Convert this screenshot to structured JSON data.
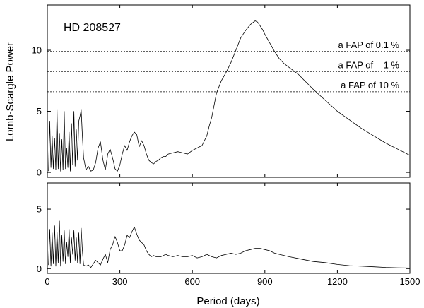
{
  "chart_data": [
    {
      "type": "line",
      "panel": "top",
      "annotation": "HD 208527",
      "xlabel": "",
      "ylabel": "Lomb-Scargle Power",
      "xlim": [
        0,
        1500
      ],
      "ylim": [
        -0.4,
        13.7
      ],
      "xticks": [
        0,
        300,
        600,
        900,
        1200,
        1500
      ],
      "yticks": [
        0,
        5,
        10
      ],
      "ytick_labels": [
        "0",
        "5",
        "10"
      ],
      "fap_levels": [
        {
          "label": "a FAP of 0.1 %",
          "value": 9.9
        },
        {
          "label": "a FAP of    1 %",
          "value": 8.25
        },
        {
          "label": "a FAP of 10 %",
          "value": 6.6
        }
      ],
      "series": [
        {
          "x": [
            5,
            10,
            15,
            20,
            25,
            30,
            35,
            40,
            45,
            50,
            55,
            60,
            65,
            70,
            75,
            80,
            85,
            90,
            95,
            100,
            105,
            110,
            115,
            120,
            125,
            130,
            135,
            140,
            145,
            150,
            160,
            170,
            180,
            190,
            200,
            210,
            220,
            230,
            240,
            250,
            260,
            270,
            280,
            290,
            300,
            310,
            320,
            330,
            340,
            350,
            360,
            370,
            380,
            390,
            400,
            410,
            420,
            430,
            440,
            450,
            460,
            470,
            480,
            490,
            500,
            520,
            540,
            560,
            580,
            600,
            620,
            640,
            660,
            670,
            680,
            690,
            700,
            720,
            740,
            760,
            780,
            800,
            820,
            840,
            860,
            870,
            880,
            890,
            900,
            920,
            940,
            960,
            980,
            1000,
            1020,
            1040,
            1060,
            1080,
            1100,
            1150,
            1200,
            1250,
            1300,
            1350,
            1400,
            1450,
            1500
          ],
          "y": [
            0.1,
            4.2,
            0.4,
            3.0,
            0.3,
            2.8,
            0.2,
            5.1,
            0.3,
            3.2,
            0.1,
            2.7,
            0.2,
            5.0,
            0.3,
            2.0,
            0.4,
            3.3,
            0.1,
            4.0,
            0.6,
            5.0,
            0.5,
            3.5,
            1.0,
            4.2,
            4.6,
            5.1,
            3.0,
            1.2,
            0.2,
            0.5,
            0.1,
            0.2,
            0.8,
            2.0,
            2.5,
            1.0,
            0.2,
            1.5,
            1.9,
            1.2,
            0.3,
            0.1,
            0.6,
            1.5,
            2.2,
            1.8,
            2.5,
            3.0,
            3.3,
            3.1,
            2.1,
            2.6,
            2.2,
            1.5,
            1.0,
            0.8,
            0.7,
            0.9,
            1.0,
            1.2,
            1.3,
            1.3,
            1.5,
            1.6,
            1.7,
            1.6,
            1.5,
            1.8,
            2.0,
            2.2,
            3.0,
            3.8,
            4.5,
            5.5,
            6.5,
            7.5,
            8.2,
            9.0,
            10.0,
            11.0,
            11.6,
            12.1,
            12.4,
            12.3,
            12.0,
            11.7,
            11.3,
            10.6,
            9.9,
            9.3,
            8.9,
            8.6,
            8.3,
            8.0,
            7.6,
            7.2,
            6.8,
            5.9,
            5.0,
            4.3,
            3.6,
            3.0,
            2.4,
            1.9,
            1.4
          ]
        }
      ]
    },
    {
      "type": "line",
      "panel": "bottom",
      "xlabel": "Period (days)",
      "ylabel": "",
      "xlim": [
        0,
        1500
      ],
      "ylim": [
        -0.4,
        7.2
      ],
      "xticks": [
        0,
        300,
        600,
        900,
        1200,
        1500
      ],
      "xtick_labels": [
        "0",
        "300",
        "600",
        "900",
        "1200",
        "1500"
      ],
      "yticks": [
        0,
        5
      ],
      "ytick_labels": [
        "0",
        "5"
      ],
      "series": [
        {
          "x": [
            5,
            10,
            15,
            20,
            25,
            30,
            35,
            40,
            45,
            50,
            55,
            60,
            65,
            70,
            75,
            80,
            85,
            90,
            95,
            100,
            105,
            110,
            115,
            120,
            125,
            130,
            135,
            140,
            145,
            150,
            160,
            170,
            180,
            190,
            200,
            210,
            220,
            230,
            240,
            250,
            260,
            270,
            280,
            290,
            300,
            310,
            320,
            330,
            340,
            350,
            360,
            370,
            380,
            390,
            400,
            410,
            420,
            430,
            440,
            450,
            460,
            470,
            480,
            490,
            500,
            520,
            540,
            560,
            580,
            600,
            620,
            640,
            660,
            680,
            700,
            720,
            740,
            760,
            780,
            800,
            820,
            840,
            860,
            880,
            900,
            920,
            940,
            960,
            1000,
            1050,
            1100,
            1150,
            1200,
            1250,
            1300,
            1350,
            1400,
            1450,
            1500
          ],
          "y": [
            0.3,
            3.3,
            0.2,
            3.0,
            0.4,
            3.6,
            0.2,
            3.1,
            0.5,
            4.0,
            0.2,
            2.8,
            0.6,
            3.2,
            0.4,
            2.2,
            1.0,
            3.3,
            0.5,
            2.6,
            1.2,
            3.2,
            0.7,
            2.6,
            0.5,
            3.0,
            0.4,
            3.4,
            1.5,
            0.3,
            0.2,
            0.3,
            0.1,
            0.4,
            0.7,
            0.5,
            0.3,
            0.8,
            1.2,
            0.5,
            1.6,
            2.0,
            2.7,
            2.2,
            1.5,
            1.5,
            2.0,
            2.8,
            2.6,
            3.1,
            3.5,
            2.9,
            2.4,
            2.2,
            2.0,
            1.5,
            1.2,
            1.0,
            1.1,
            1.0,
            1.0,
            1.0,
            1.1,
            1.2,
            1.1,
            1.0,
            1.1,
            1.0,
            1.0,
            1.1,
            0.9,
            1.0,
            1.2,
            1.0,
            0.9,
            1.1,
            1.2,
            1.3,
            1.2,
            1.3,
            1.5,
            1.6,
            1.7,
            1.7,
            1.6,
            1.5,
            1.3,
            1.2,
            1.0,
            0.8,
            0.6,
            0.5,
            0.35,
            0.25,
            0.2,
            0.15,
            0.1,
            0.07,
            0.05
          ]
        }
      ]
    }
  ]
}
